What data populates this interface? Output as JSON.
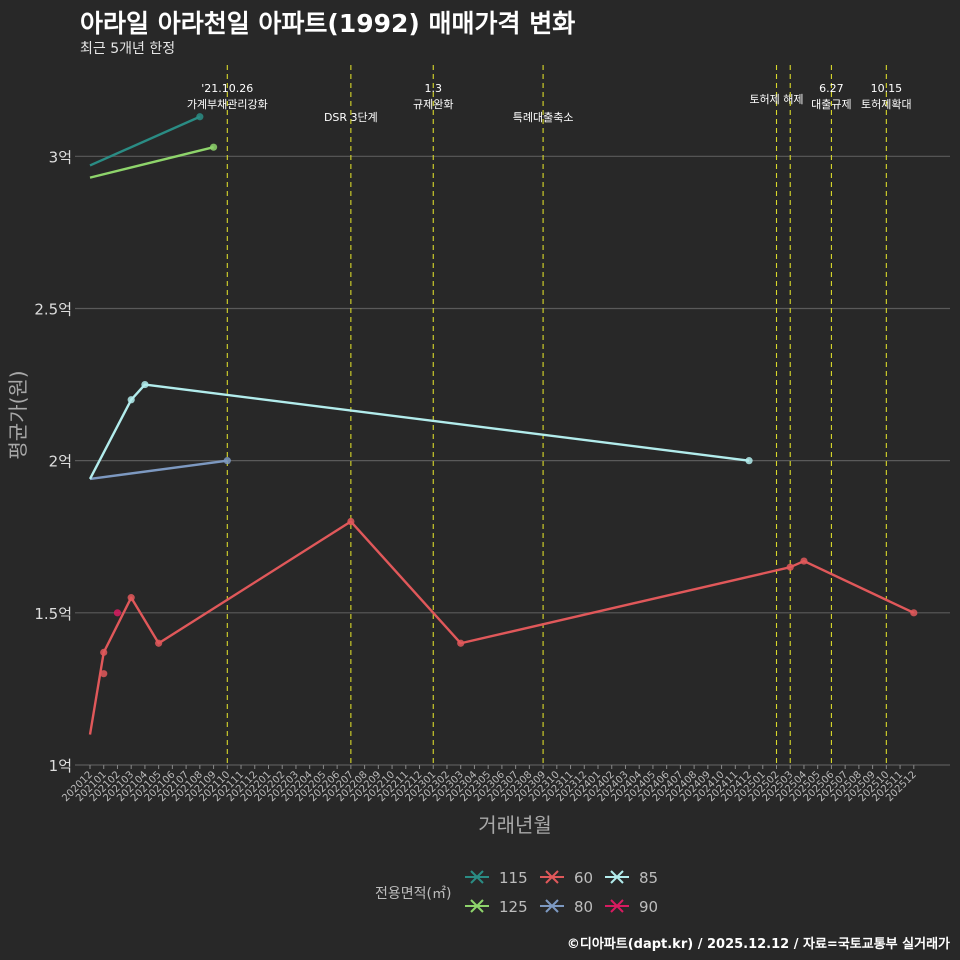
{
  "title": "아라일 아라천일 아파트(1992) 매매가격 변화",
  "subtitle": "최근 5개년 한정",
  "caption": "©디아파트(dapt.kr) / 2025.12.12 / 자료=국토교통부 실거래가",
  "chart_data": {
    "type": "line",
    "xlabel": "거래년월",
    "ylabel": "평균가(원)",
    "ylim": [
      1.0,
      3.3
    ],
    "y_ticks": [
      {
        "value": 1.0,
        "label": "1억"
      },
      {
        "value": 1.5,
        "label": "1.5억"
      },
      {
        "value": 2.0,
        "label": "2억"
      },
      {
        "value": 2.5,
        "label": "2.5억"
      },
      {
        "value": 3.0,
        "label": "3억"
      }
    ],
    "x_ticks": [
      "202012",
      "202101",
      "202102",
      "202103",
      "202104",
      "202105",
      "202106",
      "202107",
      "202108",
      "202109",
      "202110",
      "202111",
      "202112",
      "202201",
      "202202",
      "202203",
      "202204",
      "202205",
      "202206",
      "202207",
      "202208",
      "202209",
      "202210",
      "202211",
      "202212",
      "202301",
      "202302",
      "202303",
      "202304",
      "202305",
      "202306",
      "202307",
      "202308",
      "202309",
      "202310",
      "202311",
      "202312",
      "202401",
      "202402",
      "202403",
      "202404",
      "202405",
      "202406",
      "202407",
      "202408",
      "202409",
      "202410",
      "202411",
      "202412",
      "202501",
      "202502",
      "202503",
      "202504",
      "202505",
      "202506",
      "202507",
      "202508",
      "202509",
      "202510",
      "202511",
      "202512"
    ],
    "events": [
      {
        "x": "202110",
        "lines": [
          "'21.10.26",
          "가계부채관리강화"
        ],
        "level": "high"
      },
      {
        "x": "202207",
        "lines": [
          "DSR 3단계"
        ],
        "level": "low"
      },
      {
        "x": "202301",
        "lines": [
          "1.3",
          "규제완화"
        ],
        "level": "high"
      },
      {
        "x": "202309",
        "lines": [
          "특례대출축소"
        ],
        "level": "low"
      },
      {
        "x": "202502",
        "lines": [
          "토허제 해제"
        ],
        "level": "mid"
      },
      {
        "x": "202503",
        "lines": [],
        "level": "none"
      },
      {
        "x": "202506",
        "lines": [
          "6.27",
          "대출규제"
        ],
        "level": "high"
      },
      {
        "x": "202510",
        "lines": [
          "10.15",
          "토허제확대"
        ],
        "level": "high"
      }
    ],
    "legend_title": "전용면적(㎡)",
    "series": [
      {
        "name": "115",
        "color": "#2a8c84",
        "points": [
          [
            "202012",
            2.97
          ],
          [
            "202108",
            3.13
          ]
        ]
      },
      {
        "name": "125",
        "color": "#8ed46b",
        "points": [
          [
            "202012",
            2.93
          ],
          [
            "202109",
            3.03
          ]
        ]
      },
      {
        "name": "60",
        "color": "#e0585a",
        "points": [
          [
            "202012",
            1.1
          ],
          [
            "202101",
            1.37
          ],
          [
            "202103",
            1.55
          ],
          [
            "202105",
            1.4
          ],
          [
            "202207",
            1.8
          ],
          [
            "202303",
            1.4
          ],
          [
            "202503",
            1.65
          ],
          [
            "202504",
            1.67
          ],
          [
            "202512",
            1.5
          ]
        ],
        "extra_points": [
          [
            "202101",
            1.3
          ]
        ]
      },
      {
        "name": "80",
        "color": "#7d99c1",
        "points": [
          [
            "202012",
            1.94
          ],
          [
            "202110",
            2.0
          ]
        ]
      },
      {
        "name": "85",
        "color": "#b2ecec",
        "points": [
          [
            "202012",
            1.94
          ],
          [
            "202103",
            2.2
          ],
          [
            "202104",
            2.25
          ],
          [
            "202412",
            2.0
          ]
        ]
      },
      {
        "name": "90",
        "color": "#d81b60",
        "points": [
          [
            "202102",
            1.5
          ]
        ]
      }
    ]
  }
}
